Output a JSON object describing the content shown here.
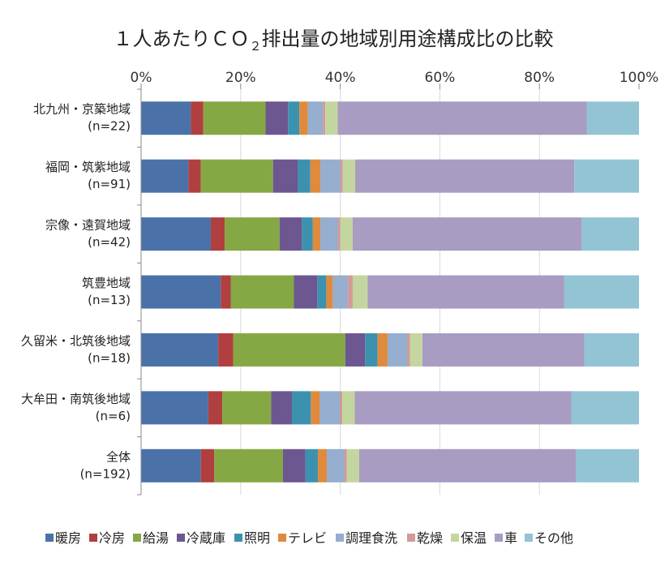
{
  "chart_data": {
    "type": "bar",
    "orientation": "horizontal",
    "stacked": "percent",
    "title_main": "１人あたりＣＯ",
    "title_sub": "２",
    "title_rest": "排出量の地域別用途構成比の比較",
    "categories": [
      {
        "name": "北九州・京築地域",
        "n": "(n=22)"
      },
      {
        "name": "福岡・筑紫地域",
        "n": "(n=91)"
      },
      {
        "name": "宗像・遠賀地域",
        "n": "(n=42)"
      },
      {
        "name": "筑豊地域",
        "n": "(n=13)"
      },
      {
        "name": "久留米・北筑後地域",
        "n": "(n=18)"
      },
      {
        "name": "大牟田・南筑後地域",
        "n": "(n=6)"
      },
      {
        "name": "全体",
        "n": "(n=192)"
      }
    ],
    "x_ticks": [
      "0%",
      "20%",
      "40%",
      "60%",
      "80%",
      "100%"
    ],
    "xlim": [
      0,
      100
    ],
    "legend_position": "bottom",
    "series": [
      {
        "name": "暖房",
        "color": "#4A72A8",
        "values": [
          10.0,
          9.5,
          14.0,
          16.0,
          15.5,
          13.5,
          12.0
        ]
      },
      {
        "name": "冷房",
        "color": "#B03F3F",
        "values": [
          2.5,
          2.5,
          2.8,
          2.0,
          3.0,
          2.8,
          2.7
        ]
      },
      {
        "name": "給湯",
        "color": "#86A844",
        "values": [
          12.5,
          14.5,
          11.0,
          12.7,
          22.5,
          9.8,
          13.8
        ]
      },
      {
        "name": "冷蔵庫",
        "color": "#6D5790",
        "values": [
          4.5,
          5.0,
          4.5,
          4.7,
          4.0,
          4.2,
          4.5
        ]
      },
      {
        "name": "照明",
        "color": "#3C92AE",
        "values": [
          2.3,
          2.5,
          2.2,
          1.8,
          2.5,
          3.8,
          2.5
        ]
      },
      {
        "name": "テレビ",
        "color": "#E08A3D",
        "values": [
          1.7,
          2.0,
          1.5,
          1.3,
          2.0,
          1.8,
          1.8
        ]
      },
      {
        "name": "調理食洗",
        "color": "#96AECF",
        "values": [
          3.0,
          4.0,
          3.5,
          3.0,
          4.0,
          4.0,
          3.5
        ]
      },
      {
        "name": "乾燥",
        "color": "#D39A9A",
        "values": [
          0.5,
          0.5,
          0.5,
          1.0,
          0.5,
          0.5,
          0.5
        ]
      },
      {
        "name": "保温",
        "color": "#C4D6A0",
        "values": [
          2.5,
          2.5,
          2.5,
          3.0,
          2.5,
          2.5,
          2.5
        ]
      },
      {
        "name": "車",
        "color": "#A89CC2",
        "values": [
          50.0,
          44.0,
          46.0,
          39.5,
          32.5,
          43.5,
          43.5
        ]
      },
      {
        "name": "その他",
        "color": "#93C4D4",
        "values": [
          10.5,
          13.0,
          11.5,
          15.0,
          11.0,
          13.6,
          12.7
        ]
      }
    ]
  }
}
